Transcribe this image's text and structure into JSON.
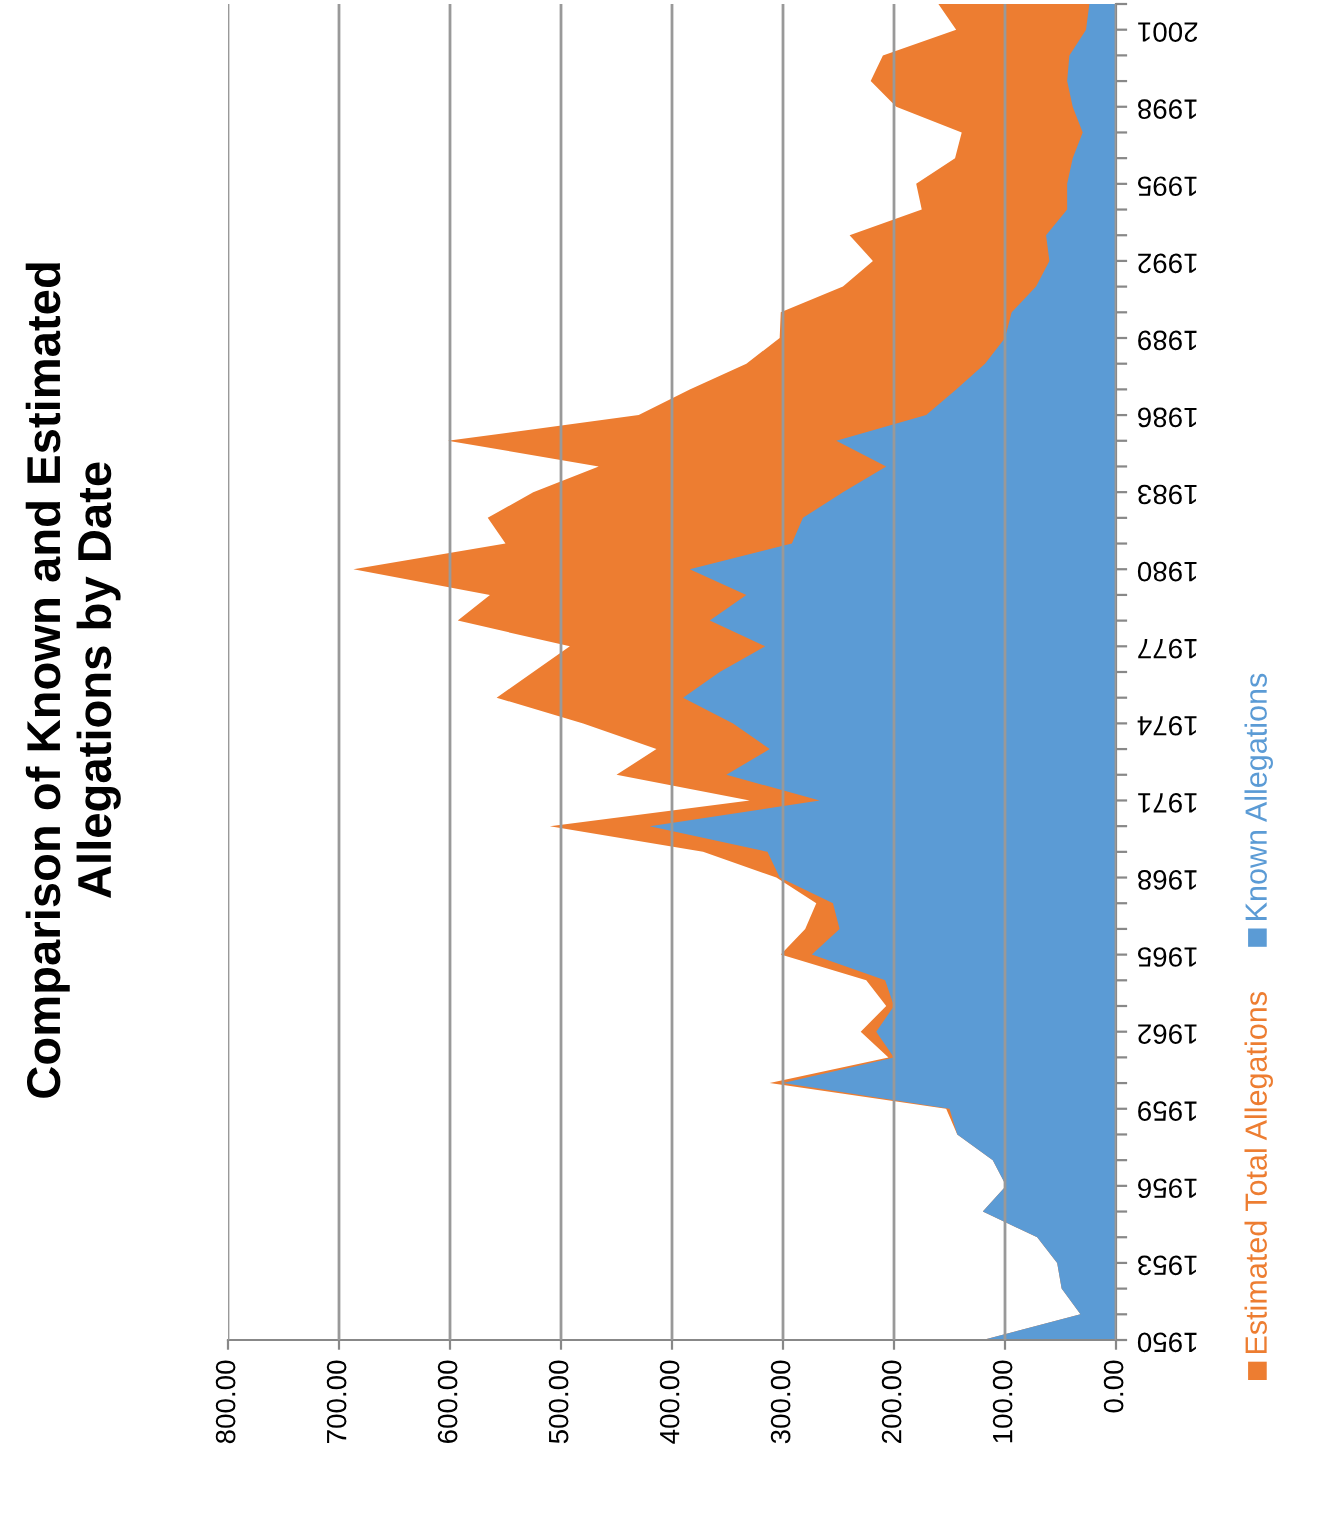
{
  "chart_data": {
    "type": "area",
    "orientation": "horizontal",
    "title": "Comparison of Known and Estimated\nAllegations by Date",
    "categories": [
      null,
      "2001",
      null,
      null,
      "1998",
      null,
      null,
      "1995",
      null,
      null,
      "1992",
      null,
      null,
      "1989",
      null,
      null,
      "1986",
      null,
      null,
      "1983",
      null,
      null,
      "1980",
      null,
      null,
      "1977",
      null,
      null,
      "1974",
      null,
      null,
      "1971",
      null,
      null,
      "1968",
      null,
      null,
      "1965",
      null,
      null,
      "1962",
      null,
      null,
      "1959",
      null,
      null,
      "1956",
      null,
      null,
      "1953",
      null,
      null,
      "1950"
    ],
    "series": [
      {
        "name": "Estimated Total Allegations",
        "color": "#ed7d31",
        "values": [
          160,
          144,
          210,
          221,
          198,
          139,
          145,
          180,
          175,
          240,
          219,
          246,
          302,
          303,
          333,
          384,
          430,
          602,
          466,
          525,
          566,
          550,
          687,
          564,
          593,
          492,
          525,
          558,
          480,
          414,
          450,
          330,
          510,
          372,
          306,
          270,
          280,
          302,
          225,
          207,
          230,
          205,
          312,
          153,
          143,
          111,
          99,
          120,
          71,
          53,
          49,
          32,
          120
        ]
      },
      {
        "name": "Known Allegations",
        "color": "#5b9bd5",
        "values": [
          24,
          27,
          42,
          44,
          39,
          30,
          39,
          44,
          44,
          63,
          60,
          72,
          94,
          100,
          118,
          144,
          171,
          252,
          207,
          246,
          282,
          292,
          384,
          333,
          366,
          316,
          357,
          390,
          345,
          312,
          351,
          267,
          420,
          314,
          303,
          255,
          249,
          274,
          208,
          200,
          216,
          200,
          300,
          150,
          143,
          111,
          99,
          120,
          71,
          53,
          49,
          32,
          120
        ]
      }
    ],
    "xlim": [
      800,
      0
    ],
    "xticks": [
      {
        "value": 800,
        "label": "800.00"
      },
      {
        "value": 700,
        "label": "700.00"
      },
      {
        "value": 600,
        "label": "600.00"
      },
      {
        "value": 500,
        "label": "500.00"
      },
      {
        "value": 400,
        "label": "400.00"
      },
      {
        "value": 300,
        "label": "300.00"
      },
      {
        "value": 200,
        "label": "200.00"
      },
      {
        "value": 100,
        "label": "100.00"
      },
      {
        "value": 0,
        "label": "0.00"
      }
    ],
    "grid": "x",
    "legend": "right"
  }
}
